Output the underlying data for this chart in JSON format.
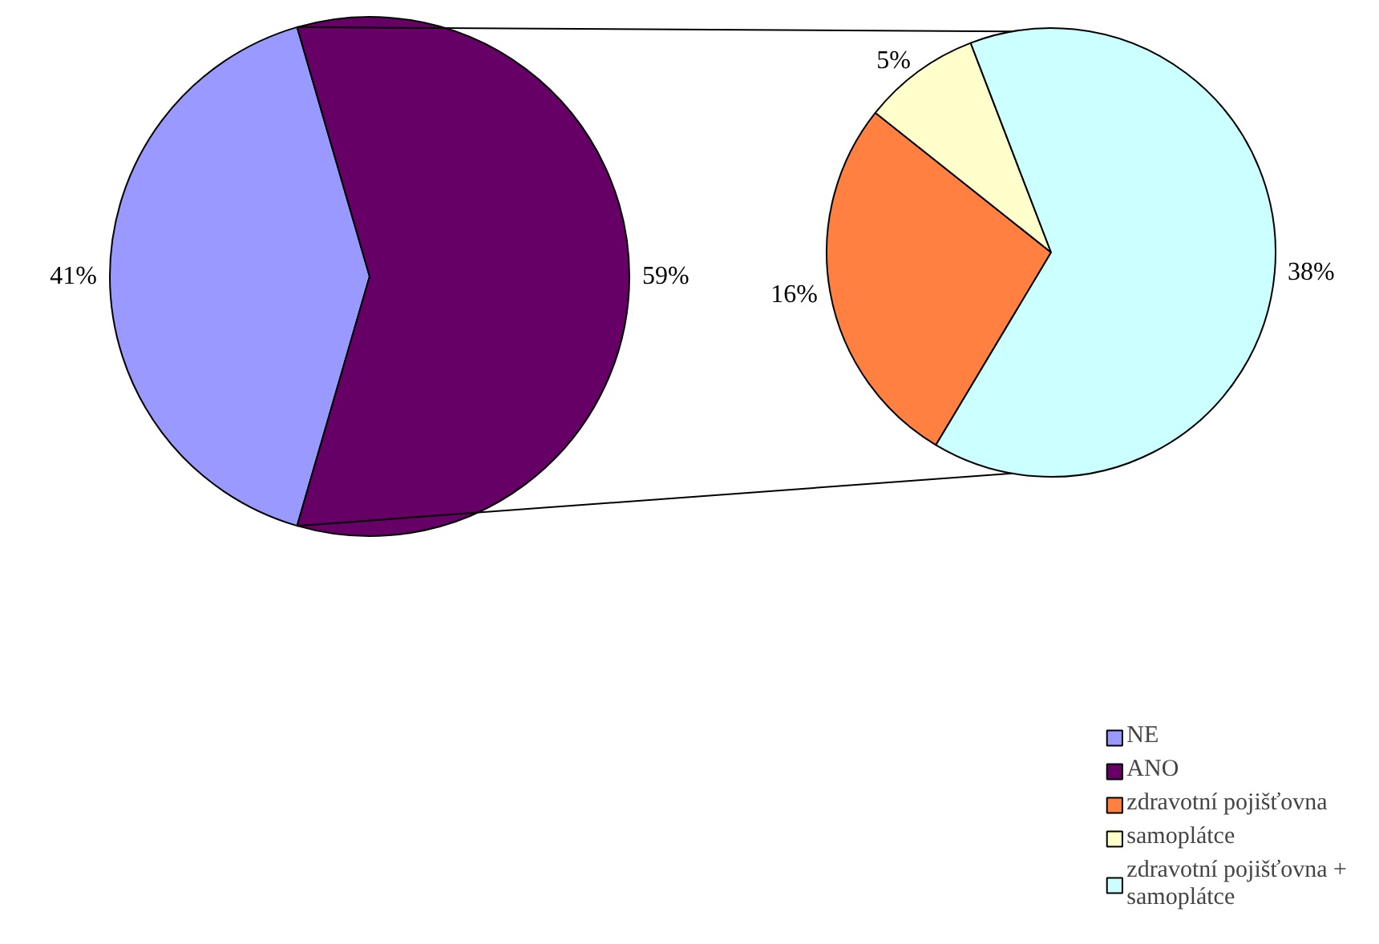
{
  "chart_data": [
    {
      "type": "pie",
      "categories": [
        "NE",
        "ANO"
      ],
      "values": [
        41,
        59
      ],
      "colors": [
        "#9999ff",
        "#660066"
      ],
      "value_labels": [
        "41%",
        "59%"
      ],
      "legend": "bottom right"
    },
    {
      "type": "pie",
      "categories": [
        "zdravotní pojišťovna",
        "samoplátce",
        "zdravotní pojišťovna + samoplátce"
      ],
      "values": [
        16,
        5,
        38
      ],
      "colors": [
        "#ff8040",
        "#ffffcc",
        "#ccffff"
      ],
      "value_labels": [
        "16%",
        "5%",
        "38%"
      ],
      "legend": "bottom right"
    }
  ]
}
